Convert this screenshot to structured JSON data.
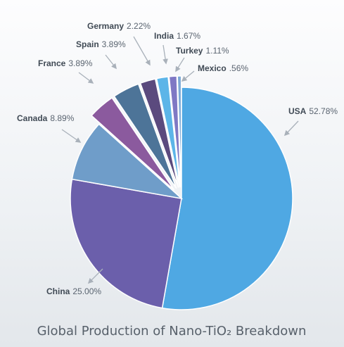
{
  "chart_data": {
    "type": "pie",
    "title": "Global Production of Nano-TiO₂ Breakdown",
    "slices": [
      {
        "name": "USA",
        "value": 52.78,
        "label_pct": "52.78%",
        "color": "#4fa8e3",
        "exploded": false
      },
      {
        "name": "China",
        "value": 25.0,
        "label_pct": "25.00%",
        "color": "#6b5fab",
        "exploded": false
      },
      {
        "name": "Canada",
        "value": 8.89,
        "label_pct": "8.89%",
        "color": "#6f9dc9",
        "exploded": false
      },
      {
        "name": "France",
        "value": 3.89,
        "label_pct": "3.89%",
        "color": "#8b5a9e",
        "exploded": true
      },
      {
        "name": "Spain",
        "value": 3.89,
        "label_pct": "3.89%",
        "color": "#4d7498",
        "exploded": true
      },
      {
        "name": "Germany",
        "value": 2.22,
        "label_pct": "2.22%",
        "color": "#5b4a7e",
        "exploded": true
      },
      {
        "name": "India",
        "value": 1.67,
        "label_pct": "1.67%",
        "color": "#5cb5e8",
        "exploded": true
      },
      {
        "name": "Turkey",
        "value": 1.11,
        "label_pct": "1.11%",
        "color": "#7f78c4",
        "exploded": true
      },
      {
        "name": "Mexico",
        "value": 0.56,
        "label_pct": ".56%",
        "color": "#7da9d6",
        "exploded": true
      }
    ],
    "start_angle": "12 o'clock",
    "direction": "clockwise",
    "legend": "none"
  }
}
